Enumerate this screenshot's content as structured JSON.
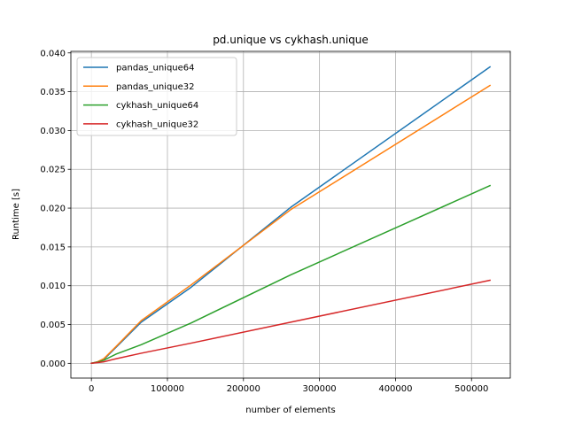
{
  "chart_data": {
    "type": "line",
    "title": "pd.unique vs cykhash.unique",
    "xlabel": "number of elements",
    "ylabel": "Runtime [s]",
    "xlim": [
      -27000,
      551000
    ],
    "ylim": [
      -0.0019,
      0.0402
    ],
    "grid": true,
    "legend_position": "top-left",
    "x_ticks": [
      0,
      100000,
      200000,
      300000,
      400000,
      500000
    ],
    "x_tick_labels": [
      "0",
      "100000",
      "200000",
      "300000",
      "400000",
      "500000"
    ],
    "y_ticks": [
      0.0,
      0.005,
      0.01,
      0.015,
      0.02,
      0.025,
      0.03,
      0.035,
      0.04
    ],
    "y_tick_labels": [
      "0.000",
      "0.005",
      "0.010",
      "0.015",
      "0.020",
      "0.025",
      "0.030",
      "0.035",
      "0.040"
    ],
    "x": [
      1,
      2,
      4,
      8,
      16,
      32,
      64,
      128,
      256,
      512,
      1024,
      2048,
      4096,
      8192,
      16384,
      32768,
      65536,
      131072,
      262144,
      524288
    ],
    "series": [
      {
        "name": "pandas_unique64",
        "color": "#1f77b4",
        "values": [
          1e-05,
          1e-05,
          1e-05,
          1e-05,
          1e-05,
          1e-05,
          1e-05,
          1e-05,
          2e-05,
          2e-05,
          3e-05,
          5e-05,
          0.0001,
          0.0002,
          0.0005,
          0.0021,
          0.0053,
          0.0098,
          0.0201,
          0.0382
        ]
      },
      {
        "name": "pandas_unique32",
        "color": "#ff7f0e",
        "values": [
          1e-05,
          1e-05,
          1e-05,
          1e-05,
          1e-05,
          1e-05,
          1e-05,
          1e-05,
          2e-05,
          2e-05,
          3e-05,
          5e-05,
          0.0001,
          0.0002,
          0.0006,
          0.0022,
          0.0055,
          0.0101,
          0.0198,
          0.0358
        ]
      },
      {
        "name": "cykhash_unique64",
        "color": "#2ca02c",
        "values": [
          1e-05,
          1e-05,
          1e-05,
          1e-05,
          1e-05,
          1e-05,
          1e-05,
          1e-05,
          1e-05,
          2e-05,
          2e-05,
          4e-05,
          8e-05,
          0.00015,
          0.0004,
          0.0012,
          0.0024,
          0.0052,
          0.0114,
          0.0229
        ]
      },
      {
        "name": "cykhash_unique32",
        "color": "#d62728",
        "values": [
          1e-05,
          1e-05,
          1e-05,
          1e-05,
          1e-05,
          1e-05,
          1e-05,
          1e-05,
          1e-05,
          1e-05,
          2e-05,
          3e-05,
          5e-05,
          0.0001,
          0.0002,
          0.0006,
          0.0013,
          0.0026,
          0.0053,
          0.0107
        ]
      }
    ]
  }
}
